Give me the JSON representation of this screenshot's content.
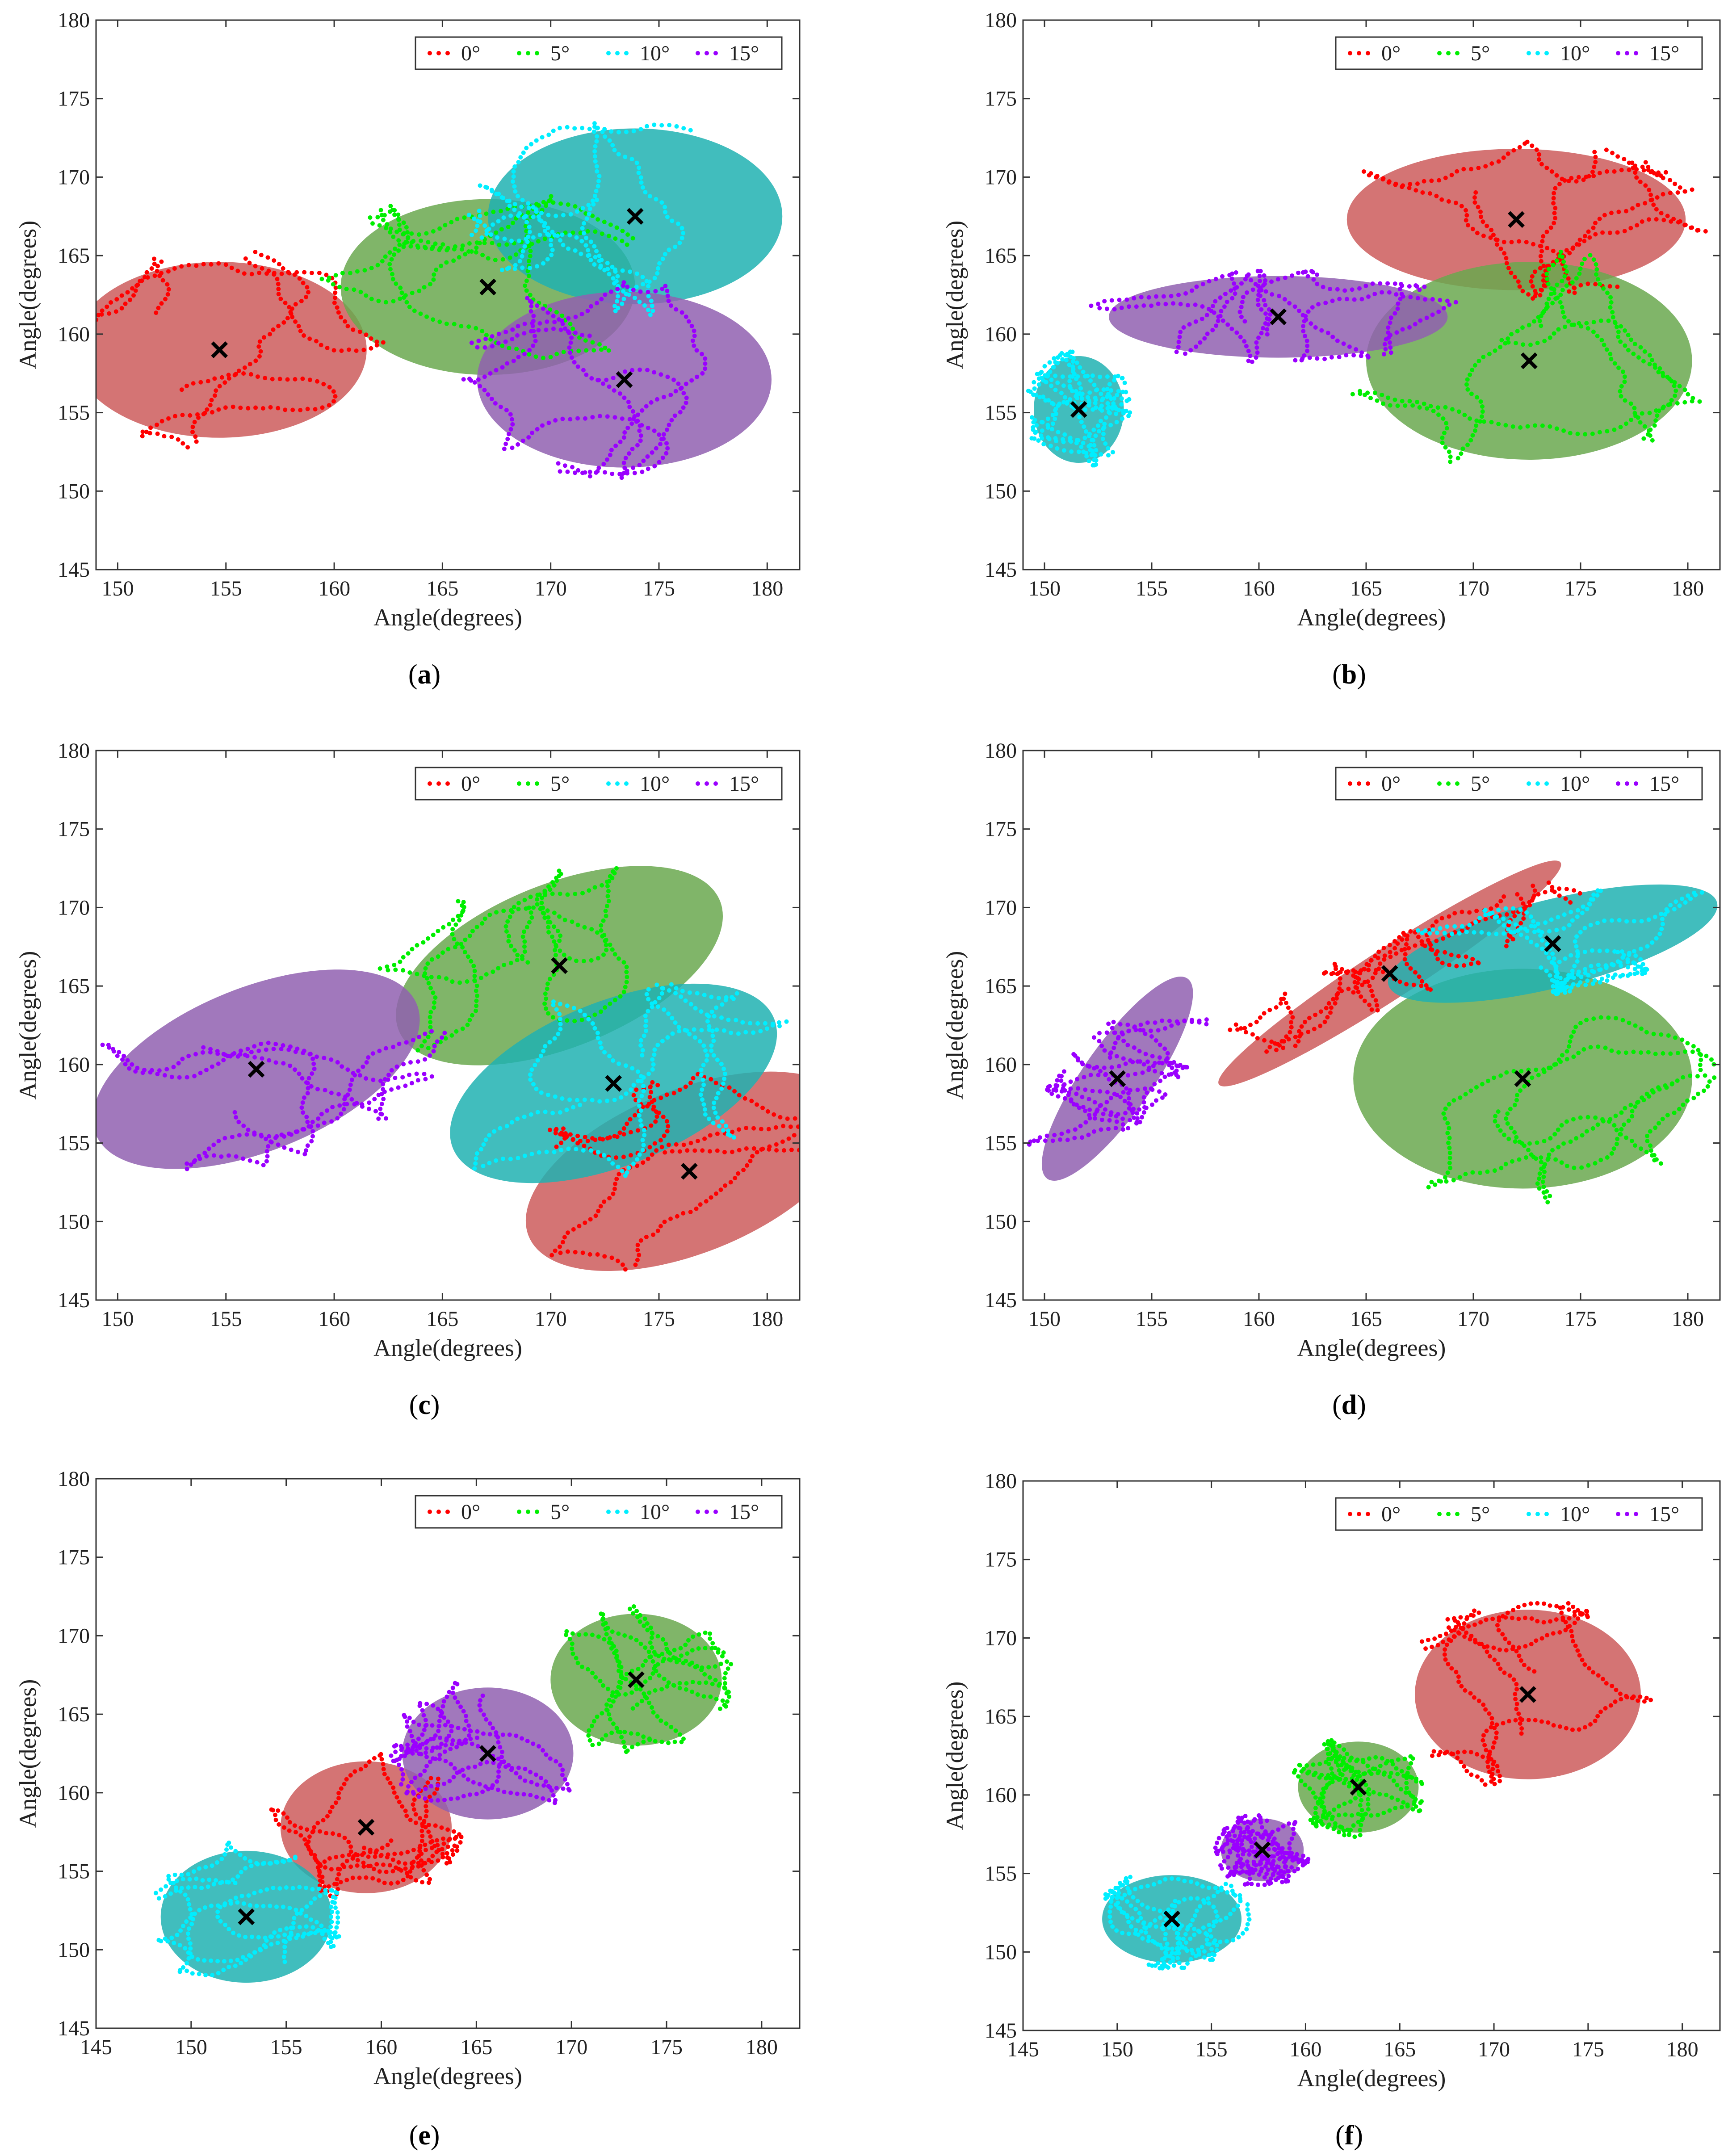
{
  "colors": {
    "0°": "#ff0000",
    "5°": "#00ee00",
    "10°": "#00eeff",
    "15°": "#9a00ff",
    "ellipse_0°": "#cd5c5c",
    "ellipse_5°": "#6aa84f",
    "ellipse_10°": "#20b2b2",
    "ellipse_15°": "#9060b0",
    "marker": "#000000"
  },
  "chart_data": [
    {
      "panel": "a",
      "caption_open": "(",
      "caption_letter": "a",
      "caption_close": ")",
      "type": "scatter",
      "xlabel": "Angle(degrees)",
      "ylabel": "Angle(degrees)",
      "xlim": [
        149,
        181.5
      ],
      "ylim": [
        145,
        180
      ],
      "xticks": [
        "150",
        "155",
        "160",
        "165",
        "170",
        "175",
        "180"
      ],
      "xtick_values": [
        150,
        155,
        160,
        165,
        170,
        175,
        180
      ],
      "yticks": [
        "145",
        "150",
        "155",
        "160",
        "165",
        "170",
        "175",
        "180"
      ],
      "ytick_values": [
        145,
        150,
        155,
        160,
        165,
        170,
        175,
        180
      ],
      "legend": [
        "0°",
        "5°",
        "10°",
        "15°"
      ],
      "legend_position": "top-right",
      "clusters": [
        {
          "series": "0°",
          "center": [
            154.7,
            159.0
          ],
          "rx": 6.8,
          "ry": 5.6,
          "angle": 0
        },
        {
          "series": "5°",
          "center": [
            167.1,
            163.0
          ],
          "rx": 6.8,
          "ry": 5.6,
          "angle": 0
        },
        {
          "series": "10°",
          "center": [
            173.9,
            167.5
          ],
          "rx": 6.8,
          "ry": 5.6,
          "angle": 0
        },
        {
          "series": "15°",
          "center": [
            173.4,
            157.1
          ],
          "rx": 6.8,
          "ry": 5.6,
          "angle": 0
        }
      ]
    },
    {
      "panel": "b",
      "caption_open": "(",
      "caption_letter": "b",
      "caption_close": ")",
      "type": "scatter",
      "xlabel": "Angle(degrees)",
      "ylabel": "Angle(degrees)",
      "xlim": [
        149,
        181.5
      ],
      "ylim": [
        145,
        180
      ],
      "xticks": [
        "150",
        "155",
        "160",
        "165",
        "170",
        "175",
        "180"
      ],
      "xtick_values": [
        150,
        155,
        160,
        165,
        170,
        175,
        180
      ],
      "yticks": [
        "145",
        "150",
        "155",
        "160",
        "165",
        "170",
        "175",
        "180"
      ],
      "ytick_values": [
        145,
        150,
        155,
        160,
        165,
        170,
        175,
        180
      ],
      "legend": [
        "0°",
        "5°",
        "10°",
        "15°"
      ],
      "legend_position": "top-right",
      "clusters": [
        {
          "series": "0°",
          "center": [
            172.0,
            167.3
          ],
          "rx": 7.9,
          "ry": 4.5,
          "angle": 0
        },
        {
          "series": "5°",
          "center": [
            172.6,
            158.3
          ],
          "rx": 7.6,
          "ry": 6.3,
          "angle": 0
        },
        {
          "series": "10°",
          "center": [
            151.6,
            155.2
          ],
          "rx": 2.1,
          "ry": 3.4,
          "angle": 0
        },
        {
          "series": "15°",
          "center": [
            160.9,
            161.1
          ],
          "rx": 7.9,
          "ry": 2.6,
          "angle": 0
        }
      ]
    },
    {
      "panel": "c",
      "caption_open": "(",
      "caption_letter": "c",
      "caption_close": ")",
      "type": "scatter",
      "xlabel": "Angle(degrees)",
      "ylabel": "Angle(degrees)",
      "xlim": [
        149,
        181.5
      ],
      "ylim": [
        145,
        180
      ],
      "xticks": [
        "150",
        "155",
        "160",
        "165",
        "170",
        "175",
        "180"
      ],
      "xtick_values": [
        150,
        155,
        160,
        165,
        170,
        175,
        180
      ],
      "yticks": [
        "145",
        "150",
        "155",
        "160",
        "165",
        "170",
        "175",
        "180"
      ],
      "ytick_values": [
        145,
        150,
        155,
        160,
        165,
        170,
        175,
        180
      ],
      "legend": [
        "0°",
        "5°",
        "10°",
        "15°"
      ],
      "legend_position": "top-right",
      "clusters": [
        {
          "series": "0°",
          "center": [
            176.4,
            153.2
          ],
          "rx": 8.0,
          "ry": 5.2,
          "angle": -22
        },
        {
          "series": "5°",
          "center": [
            170.4,
            166.3
          ],
          "rx": 8.0,
          "ry": 5.2,
          "angle": -22
        },
        {
          "series": "10°",
          "center": [
            172.9,
            158.8
          ],
          "rx": 8.0,
          "ry": 5.2,
          "angle": -22
        },
        {
          "series": "15°",
          "center": [
            156.4,
            159.7
          ],
          "rx": 8.0,
          "ry": 5.2,
          "angle": -22
        }
      ]
    },
    {
      "panel": "d",
      "caption_open": "(",
      "caption_letter": "d",
      "caption_close": ")",
      "type": "scatter",
      "xlabel": "Angle(degrees)",
      "ylabel": "Angle(degrees)",
      "xlim": [
        149,
        181.5
      ],
      "ylim": [
        145,
        180
      ],
      "xticks": [
        "150",
        "155",
        "160",
        "165",
        "170",
        "175",
        "180"
      ],
      "xtick_values": [
        150,
        155,
        160,
        165,
        170,
        175,
        180
      ],
      "yticks": [
        "145",
        "150",
        "155",
        "160",
        "165",
        "170",
        "175",
        "180"
      ],
      "ytick_values": [
        145,
        150,
        155,
        160,
        165,
        170,
        175,
        180
      ],
      "legend": [
        "0°",
        "5°",
        "10°",
        "15°"
      ],
      "legend_position": "top-right",
      "clusters": [
        {
          "series": "0°",
          "center": [
            166.1,
            165.8
          ],
          "rx": 9.5,
          "ry": 1.6,
          "angle": -33
        },
        {
          "series": "5°",
          "center": [
            172.3,
            159.1
          ],
          "rx": 7.9,
          "ry": 7.0,
          "angle": 0
        },
        {
          "series": "10°",
          "center": [
            173.7,
            167.7
          ],
          "rx": 7.9,
          "ry": 2.8,
          "angle": -14
        },
        {
          "series": "15°",
          "center": [
            153.4,
            159.1
          ],
          "rx": 5.7,
          "ry": 2.2,
          "angle": -55
        }
      ]
    },
    {
      "panel": "e",
      "caption_open": "(",
      "caption_letter": "e",
      "caption_close": ")",
      "type": "scatter",
      "xlabel": "Angle(degrees)",
      "ylabel": "Angle(degrees)",
      "xlim": [
        145,
        182
      ],
      "ylim": [
        145,
        180
      ],
      "xticks": [
        "145",
        "150",
        "155",
        "160",
        "165",
        "170",
        "175",
        "180"
      ],
      "xtick_values": [
        145,
        150,
        155,
        160,
        165,
        170,
        175,
        180
      ],
      "yticks": [
        "145",
        "150",
        "155",
        "160",
        "165",
        "170",
        "175",
        "180"
      ],
      "ytick_values": [
        145,
        150,
        155,
        160,
        165,
        170,
        175,
        180
      ],
      "legend": [
        "0°",
        "5°",
        "10°",
        "15°"
      ],
      "legend_position": "top-right",
      "clusters": [
        {
          "series": "0°",
          "center": [
            159.2,
            157.8
          ],
          "rx": 4.5,
          "ry": 4.2,
          "angle": 0
        },
        {
          "series": "5°",
          "center": [
            173.4,
            167.2
          ],
          "rx": 4.5,
          "ry": 4.2,
          "angle": 0
        },
        {
          "series": "10°",
          "center": [
            152.9,
            152.1
          ],
          "rx": 4.5,
          "ry": 4.2,
          "angle": 0
        },
        {
          "series": "15°",
          "center": [
            165.6,
            162.5
          ],
          "rx": 4.5,
          "ry": 4.2,
          "angle": 0
        }
      ]
    },
    {
      "panel": "f",
      "caption_open": "(",
      "caption_letter": "f",
      "caption_close": ")",
      "type": "scatter",
      "xlabel": "Angle(degrees)",
      "ylabel": "Angle(degrees)",
      "xlim": [
        145,
        182
      ],
      "ylim": [
        145,
        180
      ],
      "xticks": [
        "145",
        "150",
        "155",
        "160",
        "165",
        "170",
        "175",
        "180"
      ],
      "xtick_values": [
        145,
        150,
        155,
        160,
        165,
        170,
        175,
        180
      ],
      "yticks": [
        "145",
        "150",
        "155",
        "160",
        "165",
        "170",
        "175",
        "180"
      ],
      "ytick_values": [
        145,
        150,
        155,
        160,
        165,
        170,
        175,
        180
      ],
      "legend": [
        "0°",
        "5°",
        "10°",
        "15°"
      ],
      "legend_position": "top-right",
      "clusters": [
        {
          "series": "0°",
          "center": [
            171.8,
            166.4
          ],
          "rx": 6.0,
          "ry": 5.4,
          "angle": 0
        },
        {
          "series": "5°",
          "center": [
            162.8,
            160.5
          ],
          "rx": 3.2,
          "ry": 2.9,
          "angle": 0
        },
        {
          "series": "10°",
          "center": [
            152.9,
            152.1
          ],
          "rx": 3.7,
          "ry": 2.8,
          "angle": 0
        },
        {
          "series": "15°",
          "center": [
            157.7,
            156.5
          ],
          "rx": 2.2,
          "ry": 2.0,
          "angle": 0
        }
      ]
    }
  ]
}
